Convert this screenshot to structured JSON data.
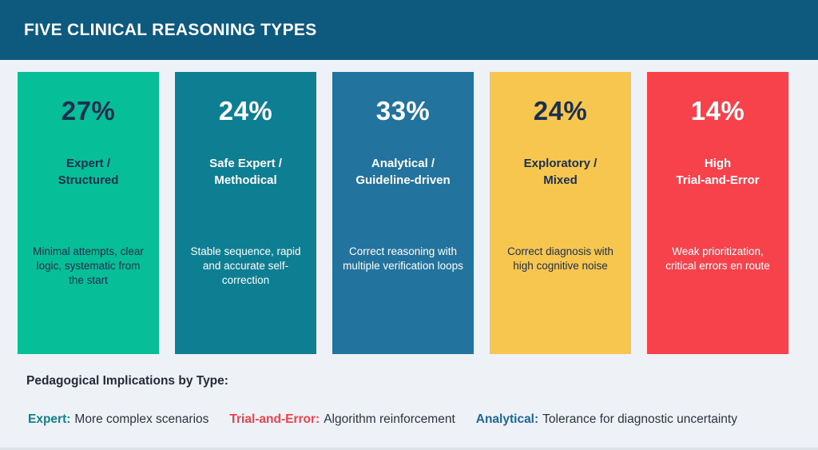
{
  "colors": {
    "header_bg": "#0e5a7f",
    "page_bg": "#eef2f7",
    "footer_text": "#2a3440"
  },
  "header": {
    "title": "FIVE CLINICAL REASONING TYPES"
  },
  "cards": [
    {
      "percent": "27%",
      "title": "Expert /\nStructured",
      "description": "Minimal attempts, clear logic, systematic from the start",
      "bg": "#06bf98",
      "text": "#1b2f4e"
    },
    {
      "percent": "24%",
      "title": "Safe Expert /\nMethodical",
      "description": "Stable sequence, rapid and accurate self-correction",
      "bg": "#0e7e92",
      "text": "#ffffff"
    },
    {
      "percent": "33%",
      "title": "Analytical /\nGuideline-driven",
      "description": "Correct reasoning with multiple verification loops",
      "bg": "#22749e",
      "text": "#ffffff"
    },
    {
      "percent": "24%",
      "title": "Exploratory /\nMixed",
      "description": "Correct diagnosis with high cognitive noise",
      "bg": "#f6c64e",
      "text": "#1b2f4e"
    },
    {
      "percent": "14%",
      "title": "High\nTrial-and-Error",
      "description": "Weak prioritization, critical errors en route",
      "bg": "#f8424b",
      "text": "#ffffff"
    }
  ],
  "footer": {
    "heading": "Pedagogical Implications by Type:",
    "legend": [
      {
        "label": "Expert:",
        "label_color": "#11808e",
        "text": "More complex scenarios"
      },
      {
        "label": "Trial-and-Error:",
        "label_color": "#ef4149",
        "text": "Algorithm reinforcement"
      },
      {
        "label": "Analytical:",
        "label_color": "#1d6795",
        "text": "Tolerance for diagnostic uncertainty"
      }
    ]
  },
  "chart_data": {
    "type": "table",
    "title": "FIVE CLINICAL REASONING TYPES",
    "categories": [
      "Expert / Structured",
      "Safe Expert / Methodical",
      "Analytical / Guideline-driven",
      "Exploratory / Mixed",
      "High Trial-and-Error"
    ],
    "values": [
      27,
      24,
      33,
      24,
      14
    ],
    "unit": "%",
    "descriptions": [
      "Minimal attempts, clear logic, systematic from the start",
      "Stable sequence, rapid and accurate self-correction",
      "Correct reasoning with multiple verification loops",
      "Correct diagnosis with high cognitive noise",
      "Weak prioritization, critical errors en route"
    ],
    "notes_heading": "Pedagogical Implications by Type:",
    "notes": [
      "Expert: More complex scenarios",
      "Trial-and-Error: Algorithm reinforcement",
      "Analytical: Tolerance for diagnostic uncertainty"
    ]
  }
}
